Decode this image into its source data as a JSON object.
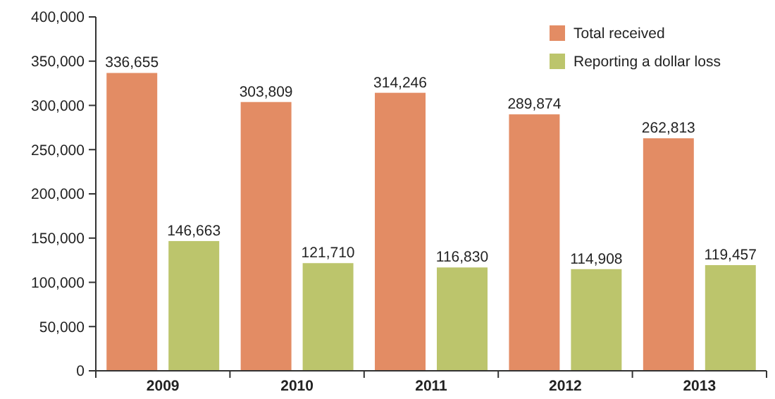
{
  "chart_data": {
    "type": "bar",
    "categories": [
      "2009",
      "2010",
      "2011",
      "2012",
      "2013"
    ],
    "series": [
      {
        "name": "Total received",
        "color": "#e38c64",
        "values": [
          336655,
          303809,
          314246,
          289874,
          262813
        ],
        "value_labels": [
          "336,655",
          "303,809",
          "314,246",
          "289,874",
          "262,813"
        ]
      },
      {
        "name": "Reporting a dollar loss",
        "color": "#bcc56c",
        "values": [
          146663,
          121710,
          116830,
          114908,
          119457
        ],
        "value_labels": [
          "146,663",
          "121,710",
          "116,830",
          "114,908",
          "119,457"
        ]
      }
    ],
    "ylim": [
      0,
      400000
    ],
    "yticks": [
      {
        "value": 0,
        "label": "0"
      },
      {
        "value": 50000,
        "label": "50,000"
      },
      {
        "value": 100000,
        "label": "100,000"
      },
      {
        "value": 150000,
        "label": "150,000"
      },
      {
        "value": 200000,
        "label": "200,000"
      },
      {
        "value": 250000,
        "label": "250,000"
      },
      {
        "value": 300000,
        "label": "300,000"
      },
      {
        "value": 350000,
        "label": "350,000"
      },
      {
        "value": 400000,
        "label": "400,000"
      }
    ],
    "legend": "top right",
    "grid": false
  }
}
